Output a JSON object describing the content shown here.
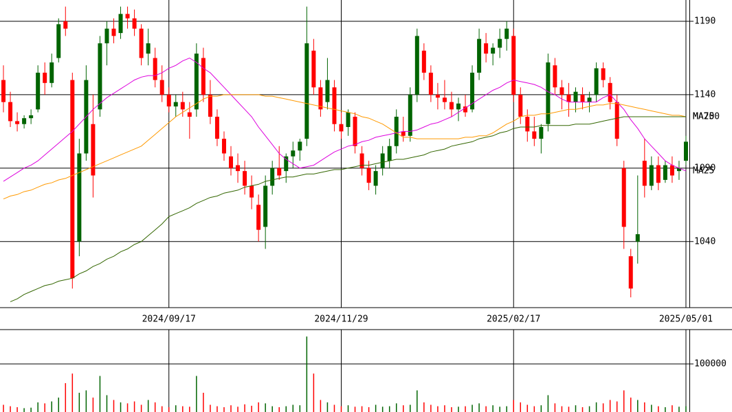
{
  "chart_data": {
    "type": "candlestick",
    "up_color": "#006400",
    "down_color": "#ff0000",
    "ylim": [
      995,
      1204.5
    ],
    "yticks": [
      1040,
      1090,
      1140,
      1190
    ],
    "xticks": [
      {
        "value": 24,
        "label": "2024/09/17"
      },
      {
        "value": 49,
        "label": "2024/11/29"
      },
      {
        "value": 74,
        "label": "2025/02/17"
      },
      {
        "value": 99,
        "label": "2025/05/01"
      }
    ],
    "ohlc": [
      [
        1150,
        1160,
        1128,
        1135
      ],
      [
        1135,
        1142,
        1118,
        1122
      ],
      [
        1122,
        1128,
        1115,
        1120
      ],
      [
        1120,
        1126,
        1117,
        1124
      ],
      [
        1124,
        1130,
        1120,
        1126
      ],
      [
        1130,
        1160,
        1128,
        1155
      ],
      [
        1155,
        1162,
        1140,
        1148
      ],
      [
        1148,
        1168,
        1145,
        1162
      ],
      [
        1165,
        1192,
        1162,
        1188
      ],
      [
        1190,
        1200,
        1180,
        1185
      ],
      [
        1150,
        1155,
        1008,
        1015
      ],
      [
        1040,
        1110,
        1030,
        1100
      ],
      [
        1100,
        1160,
        1095,
        1150
      ],
      [
        1120,
        1140,
        1070,
        1085
      ],
      [
        1130,
        1180,
        1125,
        1175
      ],
      [
        1175,
        1190,
        1160,
        1185
      ],
      [
        1185,
        1192,
        1175,
        1180
      ],
      [
        1182,
        1200,
        1178,
        1195
      ],
      [
        1195,
        1200,
        1185,
        1192
      ],
      [
        1192,
        1198,
        1180,
        1185
      ],
      [
        1185,
        1188,
        1160,
        1165
      ],
      [
        1168,
        1185,
        1160,
        1175
      ],
      [
        1165,
        1172,
        1145,
        1150
      ],
      [
        1150,
        1160,
        1135,
        1140
      ],
      [
        1140,
        1145,
        1128,
        1132
      ],
      [
        1132,
        1140,
        1125,
        1135
      ],
      [
        1135,
        1142,
        1125,
        1130
      ],
      [
        1128,
        1135,
        1110,
        1125
      ],
      [
        1130,
        1175,
        1125,
        1168
      ],
      [
        1165,
        1172,
        1135,
        1140
      ],
      [
        1140,
        1150,
        1120,
        1125
      ],
      [
        1125,
        1130,
        1105,
        1110
      ],
      [
        1110,
        1115,
        1095,
        1100
      ],
      [
        1098,
        1105,
        1085,
        1090
      ],
      [
        1092,
        1100,
        1080,
        1088
      ],
      [
        1088,
        1095,
        1072,
        1078
      ],
      [
        1078,
        1085,
        1062,
        1070
      ],
      [
        1065,
        1072,
        1040,
        1048
      ],
      [
        1050,
        1085,
        1035,
        1078
      ],
      [
        1078,
        1095,
        1072,
        1090
      ],
      [
        1090,
        1105,
        1082,
        1085
      ],
      [
        1088,
        1100,
        1080,
        1098
      ],
      [
        1098,
        1108,
        1090,
        1102
      ],
      [
        1102,
        1110,
        1095,
        1108
      ],
      [
        1110,
        1200,
        1105,
        1175
      ],
      [
        1170,
        1178,
        1140,
        1145
      ],
      [
        1145,
        1150,
        1125,
        1130
      ],
      [
        1135,
        1165,
        1130,
        1150
      ],
      [
        1145,
        1150,
        1115,
        1120
      ],
      [
        1120,
        1128,
        1110,
        1115
      ],
      [
        1118,
        1130,
        1112,
        1128
      ],
      [
        1125,
        1128,
        1100,
        1105
      ],
      [
        1100,
        1105,
        1085,
        1090
      ],
      [
        1090,
        1095,
        1075,
        1080
      ],
      [
        1078,
        1092,
        1072,
        1088
      ],
      [
        1090,
        1105,
        1085,
        1100
      ],
      [
        1095,
        1110,
        1090,
        1105
      ],
      [
        1105,
        1130,
        1100,
        1125
      ],
      [
        1115,
        1125,
        1108,
        1112
      ],
      [
        1112,
        1145,
        1108,
        1140
      ],
      [
        1140,
        1185,
        1135,
        1180
      ],
      [
        1170,
        1175,
        1150,
        1155
      ],
      [
        1155,
        1160,
        1135,
        1140
      ],
      [
        1140,
        1148,
        1130,
        1138
      ],
      [
        1138,
        1150,
        1130,
        1135
      ],
      [
        1135,
        1142,
        1125,
        1130
      ],
      [
        1130,
        1138,
        1122,
        1134
      ],
      [
        1132,
        1140,
        1125,
        1128
      ],
      [
        1130,
        1160,
        1128,
        1155
      ],
      [
        1155,
        1185,
        1150,
        1178
      ],
      [
        1175,
        1182,
        1162,
        1168
      ],
      [
        1168,
        1175,
        1160,
        1172
      ],
      [
        1172,
        1185,
        1165,
        1178
      ],
      [
        1178,
        1190,
        1170,
        1185
      ],
      [
        1180,
        1185,
        1135,
        1140
      ],
      [
        1140,
        1145,
        1120,
        1125
      ],
      [
        1125,
        1130,
        1108,
        1115
      ],
      [
        1115,
        1125,
        1105,
        1110
      ],
      [
        1110,
        1120,
        1100,
        1118
      ],
      [
        1120,
        1168,
        1115,
        1162
      ],
      [
        1160,
        1165,
        1140,
        1145
      ],
      [
        1145,
        1150,
        1130,
        1140
      ],
      [
        1140,
        1148,
        1125,
        1135
      ],
      [
        1135,
        1145,
        1128,
        1142
      ],
      [
        1140,
        1145,
        1130,
        1135
      ],
      [
        1135,
        1142,
        1128,
        1138
      ],
      [
        1140,
        1162,
        1135,
        1158
      ],
      [
        1158,
        1162,
        1145,
        1150
      ],
      [
        1148,
        1152,
        1130,
        1135
      ],
      [
        1135,
        1140,
        1105,
        1110
      ],
      [
        1090,
        1095,
        1035,
        1050
      ],
      [
        1030,
        1035,
        1002,
        1008
      ],
      [
        1040,
        1085,
        1025,
        1045
      ],
      [
        1095,
        1110,
        1070,
        1078
      ],
      [
        1078,
        1098,
        1075,
        1092
      ],
      [
        1092,
        1098,
        1075,
        1080
      ],
      [
        1082,
        1095,
        1080,
        1092
      ],
      [
        1092,
        1098,
        1080,
        1085
      ],
      [
        1088,
        1095,
        1082,
        1090
      ],
      [
        1095,
        1112,
        1092,
        1108
      ]
    ],
    "moving_averages": [
      {
        "name": "MA25",
        "color": "#dd00dd",
        "values": [
          1081,
          1084,
          1087,
          1090,
          1092,
          1095,
          1099,
          1103,
          1107,
          1111,
          1115,
          1120,
          1125,
          1130,
          1134,
          1138,
          1141,
          1144,
          1147,
          1150,
          1152,
          1153,
          1153,
          1155,
          1158,
          1160,
          1163,
          1165,
          1162,
          1158,
          1155,
          1150,
          1145,
          1140,
          1135,
          1130,
          1125,
          1118,
          1112,
          1106,
          1100,
          1096,
          1093,
          1090,
          1091,
          1092,
          1095,
          1098,
          1101,
          1103,
          1105,
          1106,
          1108,
          1109,
          1111,
          1112,
          1113,
          1114,
          1115,
          1115,
          1116,
          1118,
          1120,
          1121,
          1123,
          1125,
          1128,
          1131,
          1134,
          1137,
          1140,
          1143,
          1145,
          1148,
          1150,
          1149,
          1148,
          1147,
          1145,
          1142,
          1140,
          1137,
          1135,
          1135,
          1135,
          1135,
          1135,
          1138,
          1140,
          1135,
          1130,
          1123,
          1117,
          1110,
          1105,
          1100,
          1095,
          1092,
          1090,
          1088
        ]
      },
      {
        "name": "MA75",
        "color": "#ff9900",
        "values": [
          1069,
          1071,
          1072,
          1074,
          1075,
          1077,
          1079,
          1080,
          1082,
          1083,
          1085,
          1087,
          1089,
          1091,
          1093,
          1095,
          1097,
          1099,
          1101,
          1103,
          1105,
          1109,
          1113,
          1117,
          1121,
          1125,
          1128,
          1131,
          1134,
          1137,
          1139,
          1139,
          1140,
          1140,
          1140,
          1140,
          1140,
          1140,
          1139,
          1139,
          1138,
          1137,
          1136,
          1135,
          1134,
          1133,
          1132,
          1131,
          1130,
          1129,
          1128,
          1127,
          1125,
          1124,
          1122,
          1120,
          1117,
          1114,
          1111,
          1111,
          1110,
          1110,
          1110,
          1110,
          1110,
          1110,
          1110,
          1111,
          1111,
          1112,
          1112,
          1114,
          1117,
          1120,
          1122,
          1125,
          1126,
          1126,
          1127,
          1127,
          1128,
          1129,
          1130,
          1130,
          1131,
          1132,
          1133,
          1133,
          1134,
          1134,
          1133,
          1132,
          1131,
          1130,
          1129,
          1128,
          1127,
          1126,
          1126,
          1125
        ]
      },
      {
        "name": "MA200",
        "color": "#336600",
        "values": [
          null,
          999,
          1001,
          1004,
          1006,
          1008,
          1010,
          1011,
          1013,
          1014,
          1015,
          1018,
          1020,
          1023,
          1025,
          1028,
          1030,
          1033,
          1035,
          1038,
          1040,
          1044,
          1048,
          1052,
          1057,
          1059,
          1061,
          1063,
          1066,
          1068,
          1070,
          1071,
          1073,
          1074,
          1075,
          1077,
          1078,
          1079,
          1081,
          1082,
          1083,
          1084,
          1084,
          1085,
          1086,
          1086,
          1087,
          1088,
          1089,
          1089,
          1090,
          1091,
          1092,
          1092,
          1093,
          1094,
          1095,
          1096,
          1096,
          1097,
          1098,
          1099,
          1101,
          1102,
          1103,
          1105,
          1106,
          1107,
          1108,
          1110,
          1111,
          1112,
          1114,
          1115,
          1117,
          1118,
          1118,
          1118,
          1119,
          1119,
          1119,
          1119,
          1119,
          1120,
          1120,
          1120,
          1121,
          1122,
          1123,
          1124,
          1125,
          1125,
          1125,
          1125,
          1125,
          1125,
          1125,
          1125,
          1125,
          1125
        ]
      }
    ],
    "volume": {
      "ylim": [
        0,
        171400
      ],
      "yticks": [
        100000
      ],
      "values": [
        15000,
        12000,
        10000,
        8000,
        9000,
        20000,
        18000,
        22000,
        30000,
        60000,
        80000,
        40000,
        45000,
        30000,
        75000,
        35000,
        25000,
        20000,
        18000,
        22000,
        15000,
        25000,
        20000,
        12000,
        10000,
        14000,
        12000,
        11000,
        75000,
        40000,
        15000,
        12000,
        10000,
        14000,
        11000,
        16000,
        13000,
        20000,
        18000,
        12000,
        10000,
        12000,
        15000,
        14000,
        157000,
        80000,
        25000,
        20000,
        15000,
        12000,
        14000,
        11000,
        12000,
        10000,
        15000,
        11000,
        12000,
        18000,
        14000,
        15000,
        45000,
        20000,
        15000,
        12000,
        14000,
        10000,
        11000,
        12000,
        15000,
        18000,
        12000,
        14000,
        11000,
        12000,
        25000,
        20000,
        15000,
        12000,
        14000,
        35000,
        18000,
        12000,
        11000,
        14000,
        10000,
        12000,
        20000,
        18000,
        25000,
        22000,
        45000,
        30000,
        25000,
        20000,
        15000,
        12000,
        10000,
        14000,
        11000,
        12000
      ]
    }
  }
}
